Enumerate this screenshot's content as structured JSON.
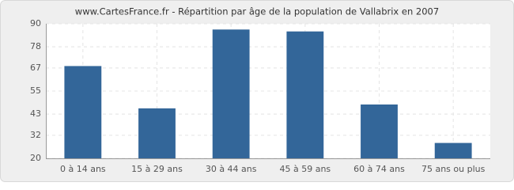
{
  "chart_data": {
    "type": "bar",
    "title": "www.CartesFrance.fr - Répartition par âge de la population de Vallabrix en 2007",
    "categories": [
      "0 à 14 ans",
      "15 à 29 ans",
      "30 à 44 ans",
      "45 à 59 ans",
      "60 à 74 ans",
      "75 ans ou plus"
    ],
    "values": [
      68,
      46,
      87,
      86,
      48,
      28
    ],
    "color": "#336699",
    "ylim": [
      20,
      90
    ],
    "yticks": [
      20,
      32,
      43,
      55,
      67,
      78,
      90
    ],
    "grid": true
  }
}
